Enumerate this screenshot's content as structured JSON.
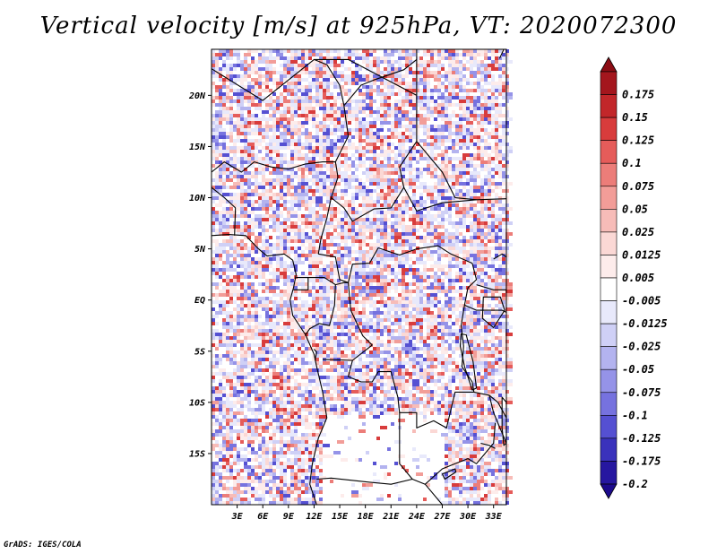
{
  "title": "Vertical velocity [m/s] at 925hPa, VT: 2020072300",
  "credit": "GrADS: IGES/COLA",
  "map": {
    "lon_range": [
      0,
      34.5
    ],
    "lat_range": [
      -20,
      24.5
    ],
    "lat_ticks": [
      {
        "value": 20,
        "label": "20N"
      },
      {
        "value": 15,
        "label": "15N"
      },
      {
        "value": 10,
        "label": "10N"
      },
      {
        "value": 5,
        "label": "5N"
      },
      {
        "value": 0,
        "label": "EQ"
      },
      {
        "value": -5,
        "label": "5S"
      },
      {
        "value": -10,
        "label": "10S"
      },
      {
        "value": -15,
        "label": "15S"
      }
    ],
    "lon_ticks": [
      {
        "value": 3,
        "label": "3E"
      },
      {
        "value": 6,
        "label": "6E"
      },
      {
        "value": 9,
        "label": "9E"
      },
      {
        "value": 12,
        "label": "12E"
      },
      {
        "value": 15,
        "label": "15E"
      },
      {
        "value": 18,
        "label": "18E"
      },
      {
        "value": 21,
        "label": "21E"
      },
      {
        "value": 24,
        "label": "24E"
      },
      {
        "value": 27,
        "label": "27E"
      },
      {
        "value": 30,
        "label": "30E"
      },
      {
        "value": 33,
        "label": "33E"
      }
    ]
  },
  "colorbar": {
    "levels": [
      {
        "label": "0.175",
        "color": "#a4161d"
      },
      {
        "label": "0.15",
        "color": "#c2272a"
      },
      {
        "label": "0.125",
        "color": "#d83c3c"
      },
      {
        "label": "0.1",
        "color": "#e55c5a"
      },
      {
        "label": "0.075",
        "color": "#ec7d79"
      },
      {
        "label": "0.05",
        "color": "#f29d98"
      },
      {
        "label": "0.025",
        "color": "#f7bcb8"
      },
      {
        "label": "0.0125",
        "color": "#fbd8d5"
      },
      {
        "label": "0.005",
        "color": "#fdeceb"
      },
      {
        "label": "-0.005",
        "color": "#ffffff"
      },
      {
        "label": "-0.0125",
        "color": "#e8e9fb"
      },
      {
        "label": "-0.025",
        "color": "#cfd0f6"
      },
      {
        "label": "-0.05",
        "color": "#b3b3ef"
      },
      {
        "label": "-0.075",
        "color": "#9593e8"
      },
      {
        "label": "-0.1",
        "color": "#7672df"
      },
      {
        "label": "-0.125",
        "color": "#5550d2"
      },
      {
        "label": "-0.175",
        "color": "#3a32bc"
      },
      {
        "label": "-0.2",
        "color": "#2617a0"
      }
    ],
    "top_color": "#8c0d14",
    "bottom_color": "#1c0a8c"
  }
}
